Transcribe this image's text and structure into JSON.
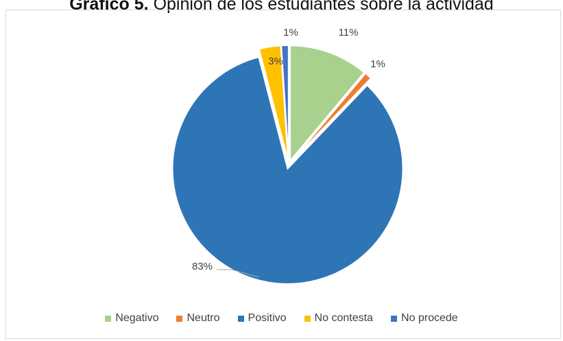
{
  "title": {
    "bold": "Gráfico 5.",
    "rest": "Opinión de los estudiantes sobre la actividad"
  },
  "chart_data": {
    "type": "pie",
    "categories": [
      "Negativo",
      "Neutro",
      "Positivo",
      "No contesta",
      "No procede"
    ],
    "values": [
      11,
      1,
      83,
      3,
      1
    ],
    "labels": [
      "11%",
      "1%",
      "83%",
      "3%",
      "1%"
    ],
    "colors": [
      "#a9d18e",
      "#ed7d31",
      "#2e75b6",
      "#ffc000",
      "#4472c4"
    ],
    "exploded": true,
    "legend_position": "bottom"
  }
}
